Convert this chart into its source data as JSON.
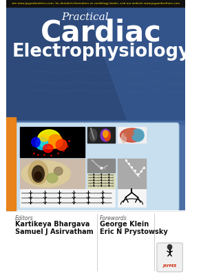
{
  "title_small": "Practical",
  "title_large_line1": "Cardiac",
  "title_large_line2": "Electrophysiology",
  "editors_label": "Editors",
  "editor1": "Kartikeya Bhargava",
  "editor2": "Samuel J Asirvatham",
  "forewords_label": "Forewords",
  "foreword1": "George Klein",
  "foreword2": "Eric N Prystowsky",
  "top_bar_text": "site www.jaypeebrothers.com, for detailed information on cardiology books, visit our website www.jaypeebrothers.com",
  "bg_top_color": "#2d4a7a",
  "orange_bar_color": "#e8821a",
  "image_panel_bg": "#c8dff0",
  "top_ticker_bg": "#111111",
  "top_ticker_text_color": "#ffdd00",
  "blue_mid_bg": "#4a6fa5"
}
